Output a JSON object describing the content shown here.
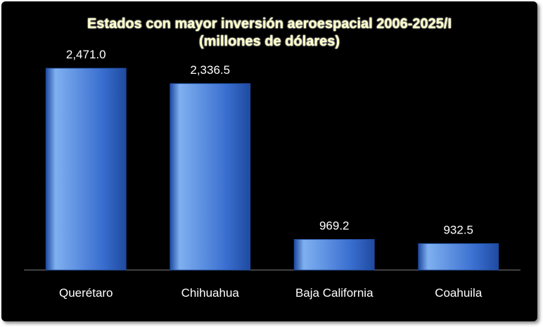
{
  "chart_data": {
    "type": "bar",
    "title": "Estados con mayor inversión aeroespacial 2006-2025/I",
    "subtitle": "(millones de dólares)",
    "categories": [
      "Querétaro",
      "Chihuahua",
      "Baja California",
      "Coahuila"
    ],
    "values": [
      2471.0,
      2336.5,
      969.2,
      932.5
    ],
    "value_labels": [
      "2,471.0",
      "2,336.5",
      "969.2",
      "932.5"
    ],
    "ylim": [
      700,
      2471
    ],
    "grid": false,
    "legend": "none",
    "colors": {
      "background": "#000000",
      "bar_light": "#7fb0f0",
      "bar_main": "#3a6fd0",
      "bar_dark": "#1f4aa0",
      "title": "#ffffc8",
      "label": "#ffffff",
      "axis": "#7f7f7f"
    }
  }
}
